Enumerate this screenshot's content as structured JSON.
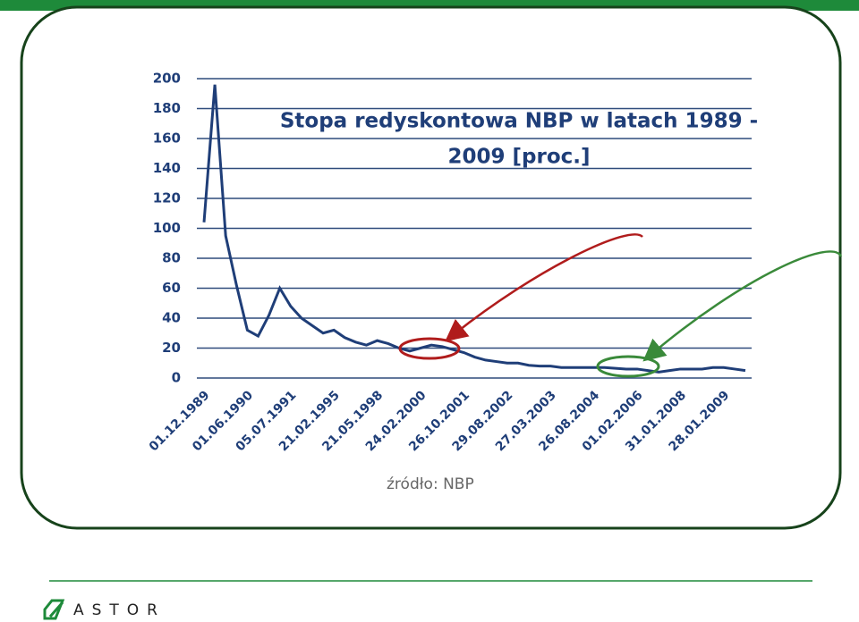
{
  "chart_data": {
    "type": "line",
    "title": [
      "Stopa redyskontowa NBP w latach 1989 -",
      "2009 [proc.]"
    ],
    "categories": [
      "01.12.1989",
      null,
      null,
      null,
      "01.06.1990",
      null,
      null,
      null,
      "05.07.1991",
      null,
      null,
      null,
      "21.02.1995",
      null,
      null,
      null,
      "21.05.1998",
      null,
      null,
      null,
      "24.02.2000",
      null,
      null,
      null,
      "26.10.2001",
      null,
      null,
      null,
      "29.08.2002",
      null,
      null,
      null,
      "27.03.2003",
      null,
      null,
      null,
      "26.08.2004",
      null,
      null,
      null,
      "01.02.2006",
      null,
      null,
      null,
      "31.01.2008",
      null,
      null,
      null,
      "28.01.2009",
      null,
      null
    ],
    "series": [
      {
        "color": "#1f3e78",
        "values": [
          104,
          196,
          95,
          62,
          32,
          28,
          42,
          60,
          48,
          40,
          35,
          30,
          32,
          27,
          24,
          22,
          25,
          23,
          20,
          18,
          20,
          22,
          21,
          19,
          17,
          14,
          12,
          11,
          10,
          10,
          8.5,
          8,
          8,
          7,
          7,
          7,
          7,
          7,
          6.5,
          6,
          6,
          5,
          4,
          5,
          6,
          6,
          6,
          7,
          7,
          6,
          5
        ]
      }
    ],
    "ylim": [
      0,
      200
    ],
    "yticks": [
      0,
      20,
      40,
      60,
      80,
      100,
      120,
      140,
      160,
      180,
      200
    ],
    "grid": true
  },
  "source": "źródło: NBP",
  "logo": {
    "text": "ASTOR"
  }
}
